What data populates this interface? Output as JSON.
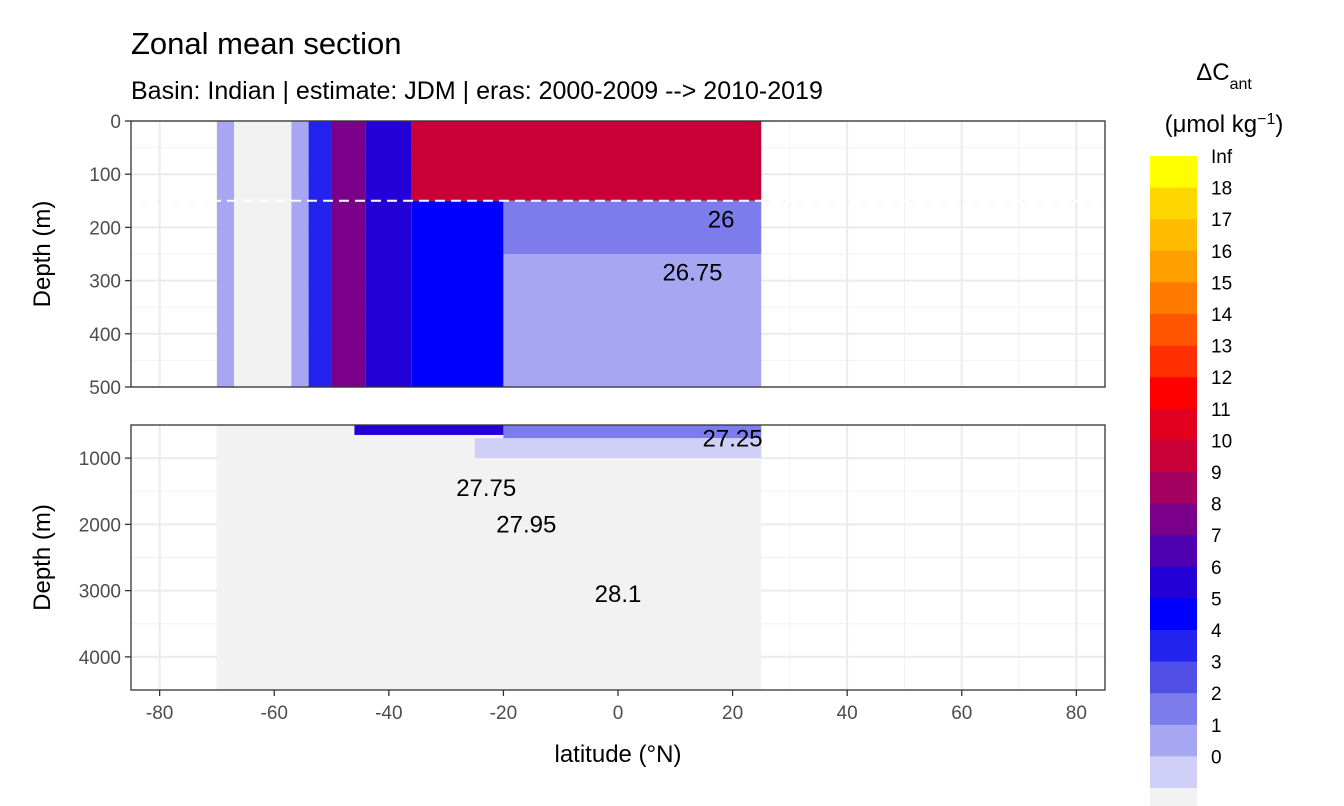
{
  "chart_data": {
    "type": "heatmap",
    "title": "Zonal mean section",
    "subtitle": "Basin: Indian | estimate: JDM  | eras: 2000-2009 --> 2010-2019",
    "xlabel": "latitude (°N)",
    "ylabel": "Depth (m)",
    "xlim": [
      -85,
      85
    ],
    "x_ticks": [
      -80,
      -60,
      -40,
      -20,
      0,
      20,
      40,
      60,
      80
    ],
    "x_tick_labels": [
      "-80",
      "-60",
      "-40",
      "-20",
      "0",
      "20",
      "40",
      "60",
      "80"
    ],
    "data_lat_range": [
      -70,
      25
    ],
    "mixed_layer_depth_line": 150,
    "panels": [
      {
        "name": "upper",
        "ylim": [
          0,
          500
        ],
        "y_ticks": [
          0,
          100,
          200,
          300,
          400,
          500
        ],
        "y_tick_labels": [
          "0",
          "100",
          "200",
          "300",
          "400",
          "500"
        ],
        "contour_labels": [
          {
            "text": "26",
            "lat": 18,
            "depth": 185
          },
          {
            "text": "26.75",
            "lat": 13,
            "depth": 285
          }
        ],
        "fields": [
          {
            "lat0": -70,
            "lat1": -67,
            "d0": 0,
            "d1": 500,
            "value": 2.5
          },
          {
            "lat0": -67,
            "lat1": -57,
            "d0": 0,
            "d1": 500,
            "value": 0.5
          },
          {
            "lat0": -57,
            "lat1": -54,
            "d0": 0,
            "d1": 500,
            "value": 2.5
          },
          {
            "lat0": -54,
            "lat1": -50,
            "d0": 0,
            "d1": 500,
            "value": 5.5
          },
          {
            "lat0": -50,
            "lat1": -44,
            "d0": 0,
            "d1": 500,
            "value": 9.5
          },
          {
            "lat0": -44,
            "lat1": -36,
            "d0": 0,
            "d1": 500,
            "value": 7.5
          },
          {
            "lat0": -36,
            "lat1": 25,
            "d0": 0,
            "d1": 150,
            "value": 11.5
          },
          {
            "lat0": -36,
            "lat1": -20,
            "d0": 150,
            "d1": 500,
            "value": 6.5
          },
          {
            "lat0": -20,
            "lat1": 25,
            "d0": 150,
            "d1": 250,
            "value": 3.5
          },
          {
            "lat0": -20,
            "lat1": 25,
            "d0": 250,
            "d1": 500,
            "value": 2.5
          }
        ]
      },
      {
        "name": "lower",
        "ylim": [
          500,
          4500
        ],
        "y_ticks": [
          1000,
          2000,
          3000,
          4000
        ],
        "y_tick_labels": [
          "1000",
          "2000",
          "3000",
          "4000"
        ],
        "contour_labels": [
          {
            "text": "27.25",
            "lat": 20,
            "depth": 700
          },
          {
            "text": "27.75",
            "lat": -23,
            "depth": 1450
          },
          {
            "text": "27.95",
            "lat": -16,
            "depth": 2000
          },
          {
            "text": "28.1",
            "lat": 0,
            "depth": 3050
          }
        ],
        "fields": [
          {
            "lat0": -70,
            "lat1": 25,
            "d0": 500,
            "d1": 4500,
            "value": 0.5
          },
          {
            "lat0": -46,
            "lat1": -20,
            "d0": 500,
            "d1": 650,
            "value": 7.5
          },
          {
            "lat0": -20,
            "lat1": 25,
            "d0": 500,
            "d1": 700,
            "value": 3.5
          },
          {
            "lat0": -25,
            "lat1": 25,
            "d0": 700,
            "d1": 1000,
            "value": 1.5
          }
        ]
      }
    ],
    "legend": {
      "title": "ΔCant",
      "title_main": "ΔC",
      "title_sub": "ant",
      "units": "(μmol kg−1)",
      "units_main": "(μmol kg",
      "units_sup": "−1",
      "units_close": ")",
      "breaks": [
        "Inf",
        "18",
        "17",
        "16",
        "15",
        "14",
        "13",
        "12",
        "11",
        "10",
        "9",
        "8",
        "7",
        "6",
        "5",
        "4",
        "3",
        "2",
        "1",
        "0"
      ],
      "colors": [
        "#ffff00",
        "#ffd700",
        "#ffbb00",
        "#ffa000",
        "#ff7b00",
        "#ff5500",
        "#ff2f00",
        "#ff0000",
        "#e2001f",
        "#c80037",
        "#a40060",
        "#7a008a",
        "#4f00b0",
        "#2300d8",
        "#0000ff",
        "#2323f0",
        "#5050e6",
        "#7c7ced",
        "#a6a6f2",
        "#cfcff7",
        "#f2f2f2"
      ]
    }
  }
}
